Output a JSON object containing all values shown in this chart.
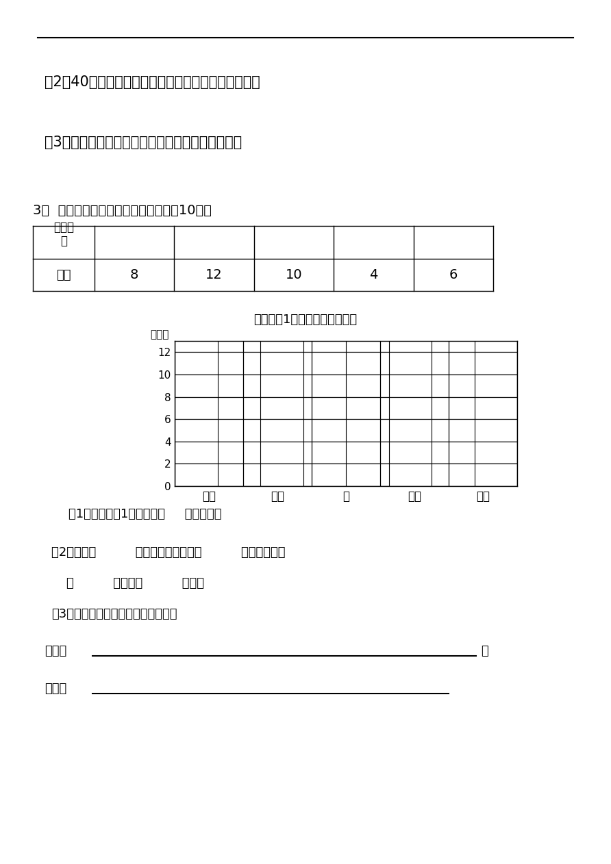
{
  "bg_color": "#ffffff",
  "line2_text": "（2）40元你可以同时买那三件商品，还剩下多少錢？",
  "line3_text": "（3）你能提出一个用乘法解决的问题，并解答吗？",
  "section3_label": "3、  根据表中的信息，制成统计图。（10分）",
  "table_values": [
    8,
    12,
    10,
    4,
    6
  ],
  "insect_names": [
    "蜴蜓",
    "蝴蝶",
    "蝉",
    "瓢虫",
    "蜜蜂"
  ],
  "chart_title": "二年级（1）班同学喜欢的昆虫",
  "y_label": "（人）",
  "y_ticks": [
    0,
    2,
    4,
    6,
    8,
    10,
    12
  ],
  "q1_text": "（1）二年级（1）班共有（     ）位同学。",
  "q2_text": "（2）喜欢（          ）的人最多，喜欢（          ）的人比喜欢",
  "q2b_text": "（          ）的少（          ）人。",
  "q3_text": "（3）请再提一个数学问题，并解答。",
  "wenti_text": "问题：",
  "jie_text": "解答：",
  "font_size_main": 15,
  "font_size_small": 12,
  "grid_cols": 8,
  "table_header_text": "昆虫名\n称",
  "renshu_text": "人数"
}
